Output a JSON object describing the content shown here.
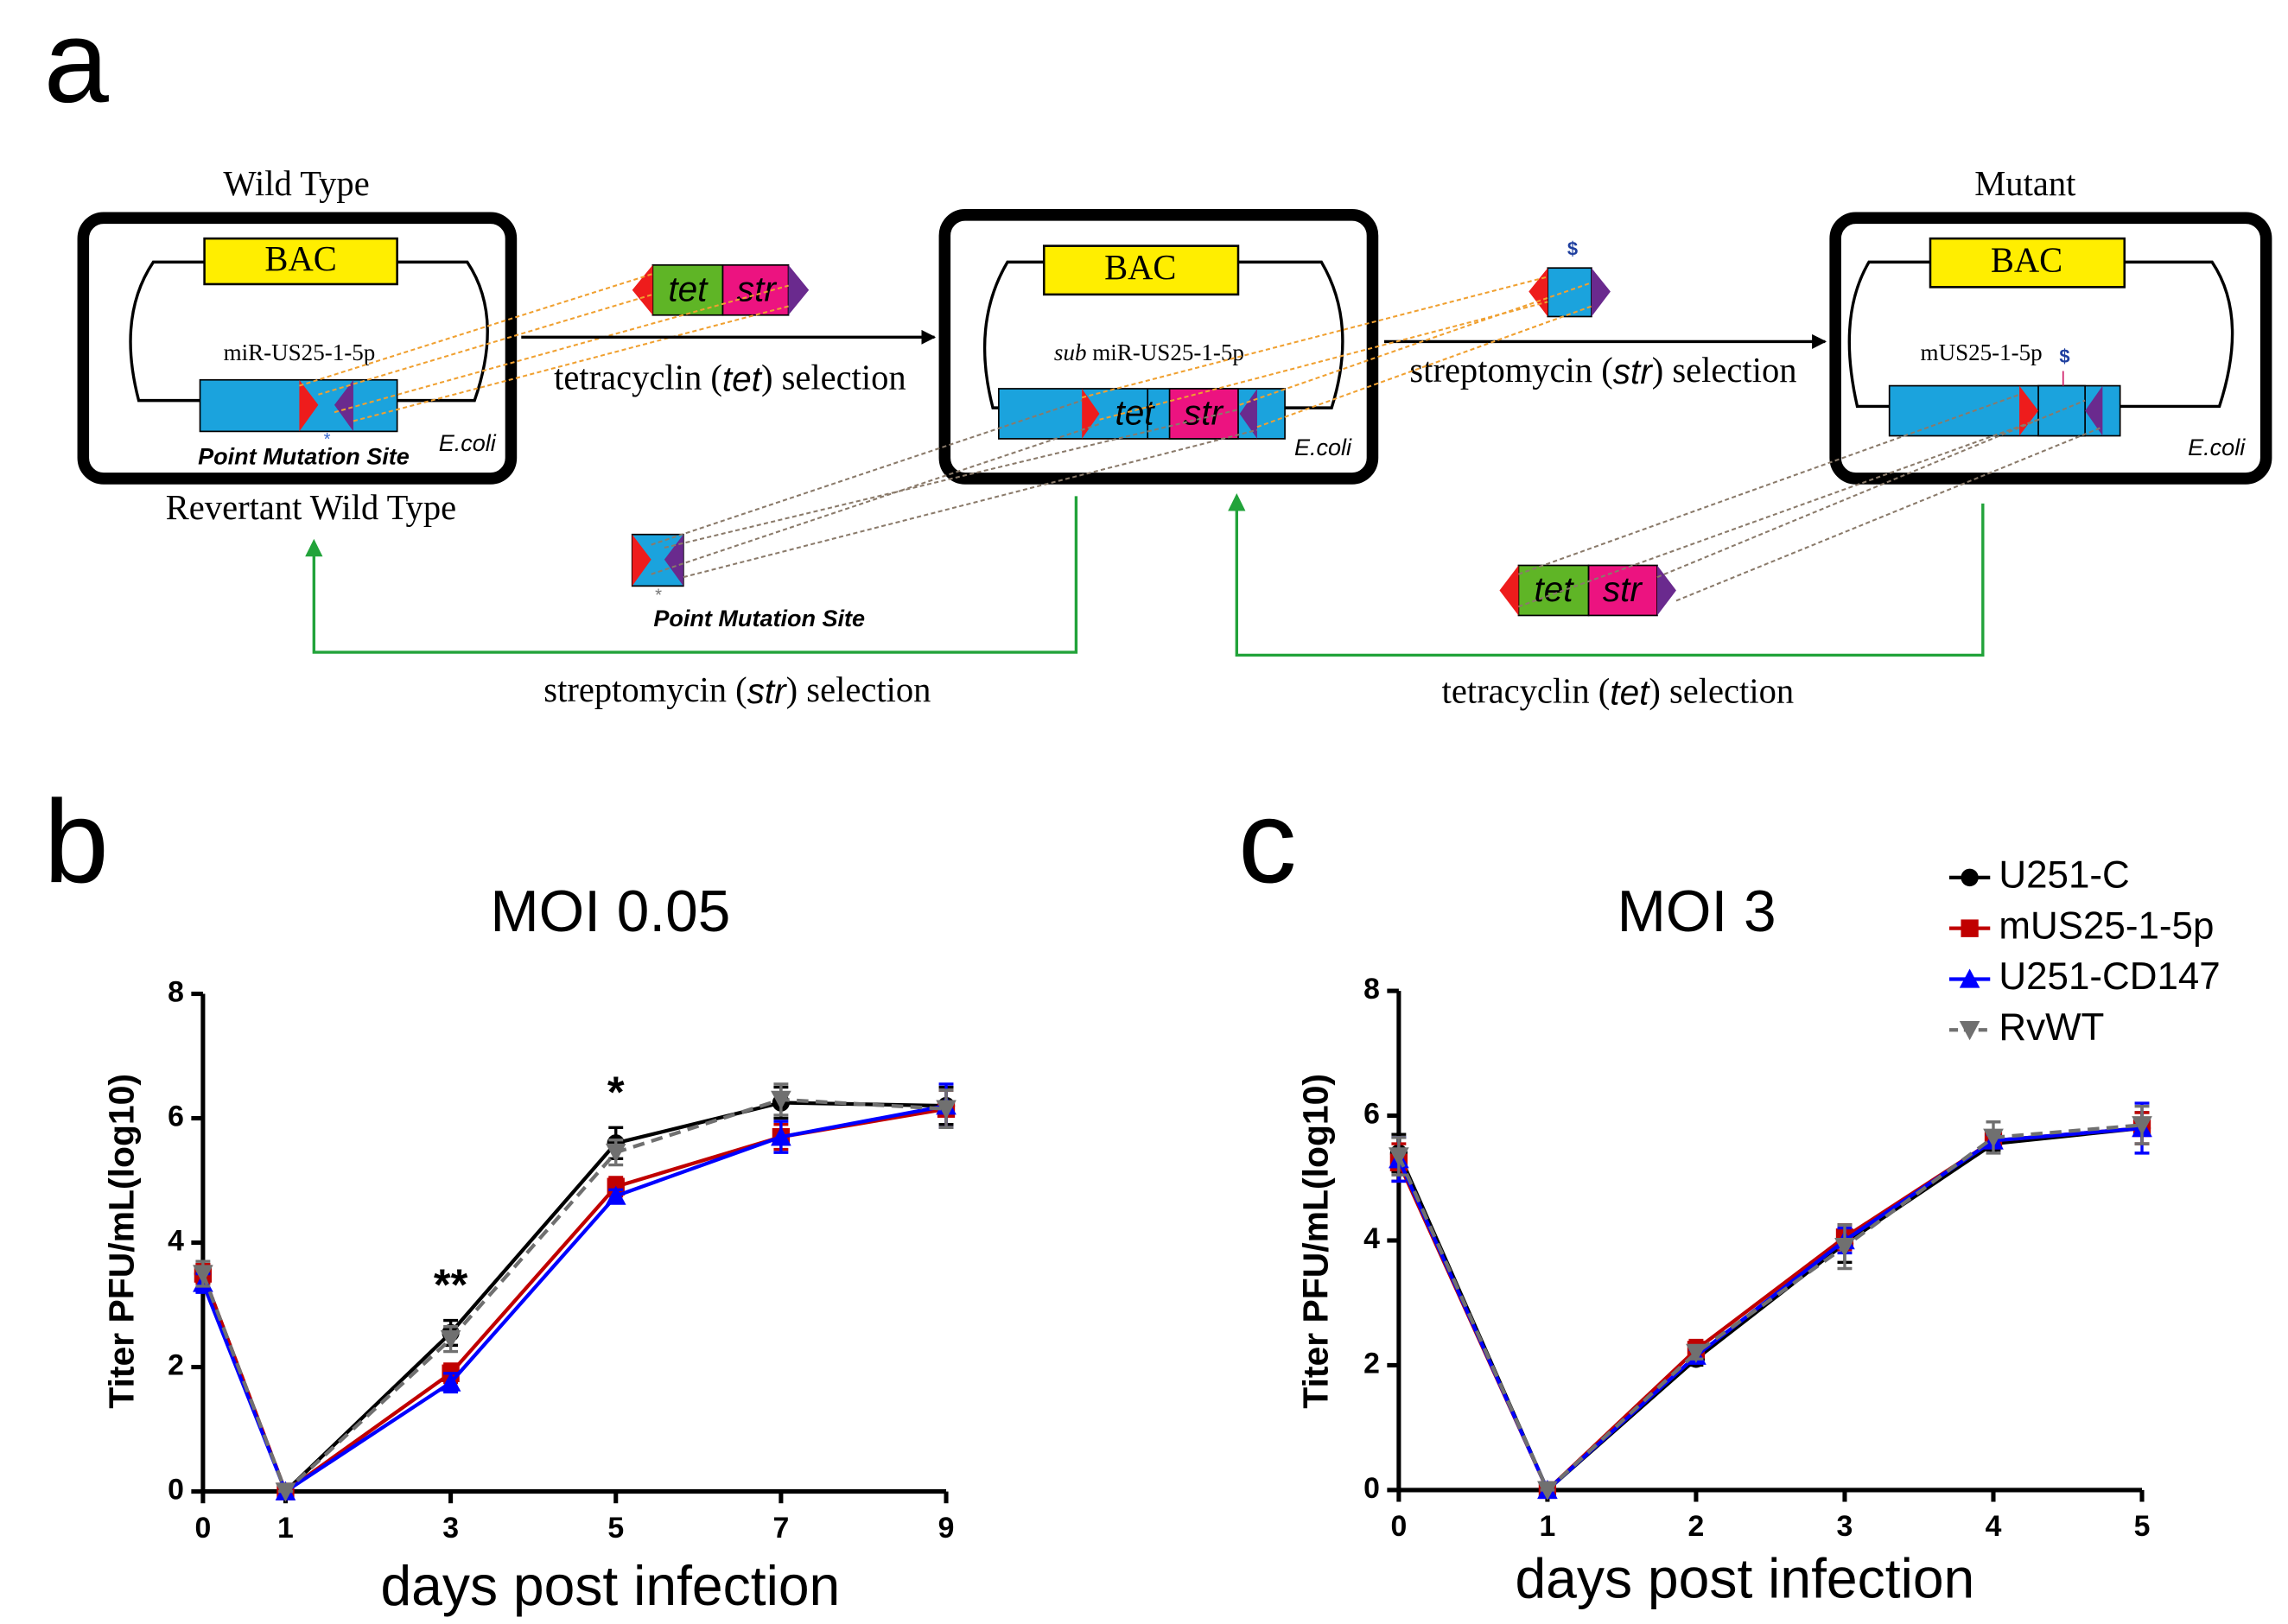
{
  "diagram": {
    "panel_label": "a",
    "wild_type": "Wild Type",
    "revertant": "Revertant Wild Type",
    "mutant": "Mutant",
    "bac": "BAC",
    "ecoli": "E.coli",
    "tet": "tet",
    "str": "str",
    "dollar": "$",
    "star": "*",
    "point_mutation": "Point Mutation Site",
    "wt_site": "miR-US25-1-5p",
    "sub_prefix": "sub",
    "sub_site": " miR-US25-1-5p",
    "mutant_site": "mUS25-1-5p",
    "tet_selection": {
      "prefix": "tetracyclin (",
      "drug": "tet",
      "suffix": ")  selection"
    },
    "str_selection": {
      "prefix": "streptomycin (",
      "drug": "str",
      "suffix": ") selection"
    }
  },
  "chart_data": [
    {
      "type": "line",
      "panel_label": "b",
      "title": "MOI 0.05",
      "x_label": "days post infection",
      "y_label": "Titer PFU/mL(log10)",
      "x": [
        0,
        1,
        3,
        5,
        7,
        9
      ],
      "xlim": [
        0,
        9
      ],
      "xticks": [
        0,
        1,
        3,
        5,
        7,
        9
      ],
      "ylim": [
        0,
        8
      ],
      "yticks": [
        0,
        2,
        4,
        6,
        8
      ],
      "series": [
        {
          "color": "#000000",
          "marker": "circle",
          "linestyle": "solid",
          "values": [
            3.5,
            0,
            2.55,
            5.6,
            6.25,
            6.2
          ],
          "errors": [
            0.15,
            0,
            0.2,
            0.25,
            0.25,
            0.3
          ]
        },
        {
          "color": "#c00000",
          "marker": "square",
          "linestyle": "solid",
          "values": [
            3.5,
            0,
            1.9,
            4.9,
            5.7,
            6.15
          ],
          "errors": [
            0.15,
            0,
            0.15,
            0.15,
            0.2,
            0.3
          ]
        },
        {
          "color": "#0000ff",
          "marker": "triangle-up",
          "linestyle": "solid",
          "values": [
            3.35,
            0,
            1.75,
            4.75,
            5.7,
            6.2
          ],
          "errors": [
            0.15,
            0,
            0.15,
            0.1,
            0.25,
            0.35
          ]
        },
        {
          "color": "#707070",
          "marker": "triangle-down",
          "linestyle": "dashed",
          "values": [
            3.5,
            0,
            2.45,
            5.45,
            6.3,
            6.15
          ],
          "errors": [
            0.2,
            0,
            0.2,
            0.2,
            0.25,
            0.3
          ]
        }
      ],
      "annotations": [
        {
          "text": "**",
          "x": 3
        },
        {
          "text": "*",
          "x": 5
        }
      ]
    },
    {
      "type": "line",
      "panel_label": "c",
      "title": "MOI 3",
      "x_label": "days post infection",
      "y_label": "Titer PFU/mL(log10)",
      "x": [
        0,
        1,
        2,
        3,
        4,
        5
      ],
      "xlim": [
        0,
        5
      ],
      "xticks": [
        0,
        1,
        2,
        3,
        4,
        5
      ],
      "ylim": [
        0,
        8
      ],
      "yticks": [
        0,
        2,
        4,
        6,
        8
      ],
      "legend": "upper right",
      "series": [
        {
          "name": "U251-C",
          "color": "#000000",
          "marker": "circle",
          "linestyle": "solid",
          "values": [
            5.4,
            0,
            2.1,
            3.95,
            5.55,
            5.8
          ],
          "errors": [
            0.3,
            0,
            0.1,
            0.3,
            0.1,
            0.25
          ]
        },
        {
          "name": "mUS25-1-5p",
          "color": "#c00000",
          "marker": "square",
          "linestyle": "solid",
          "values": [
            5.25,
            0,
            2.25,
            4.05,
            5.6,
            5.8
          ],
          "errors": [
            0.3,
            0,
            0.15,
            0.2,
            0.1,
            0.25
          ]
        },
        {
          "name": "U251-CD147",
          "color": "#0000ff",
          "marker": "triangle-up",
          "linestyle": "solid",
          "values": [
            5.3,
            0,
            2.15,
            4.0,
            5.6,
            5.8
          ],
          "errors": [
            0.35,
            0,
            0.1,
            0.2,
            0.1,
            0.4
          ]
        },
        {
          "name": "RvWT",
          "color": "#707070",
          "marker": "triangle-down",
          "linestyle": "dashed",
          "values": [
            5.35,
            0,
            2.2,
            3.9,
            5.65,
            5.85
          ],
          "errors": [
            0.3,
            0,
            0.1,
            0.35,
            0.25,
            0.3
          ]
        }
      ]
    }
  ]
}
